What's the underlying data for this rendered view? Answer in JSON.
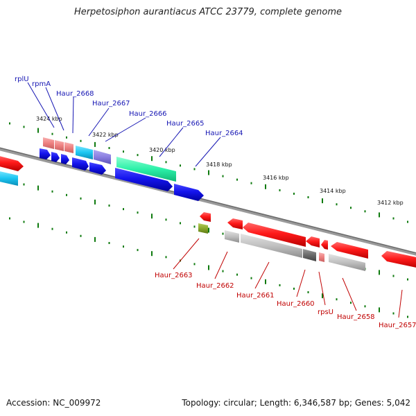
{
  "title": "Herpetosiphon aurantiacus ATCC 23779, complete genome",
  "footer": {
    "accession": "Accession: NC_009972",
    "topology": "Topology: circular; Length: 6,346,587 bp; Genes: 5,042"
  },
  "colors": {
    "forward_label": "#1515b3",
    "reverse_label": "#c00000",
    "backbone": "#7a7a7a",
    "tick": "#0e7a0e"
  },
  "kbp_ticks": [
    "3424 kbp",
    "3422 kbp",
    "3420 kbp",
    "3418 kbp",
    "3416 kbp",
    "3414 kbp",
    "3412 kbp"
  ],
  "forward_labels": [
    "rplU",
    "rpmA",
    "Haur_2668",
    "Haur_2667",
    "Haur_2666",
    "Haur_2665",
    "Haur_2664"
  ],
  "reverse_labels": [
    "Haur_2663",
    "Haur_2662",
    "Haur_2661",
    "Haur_2660",
    "rpsU",
    "Haur_2658",
    "Haur_2657"
  ]
}
